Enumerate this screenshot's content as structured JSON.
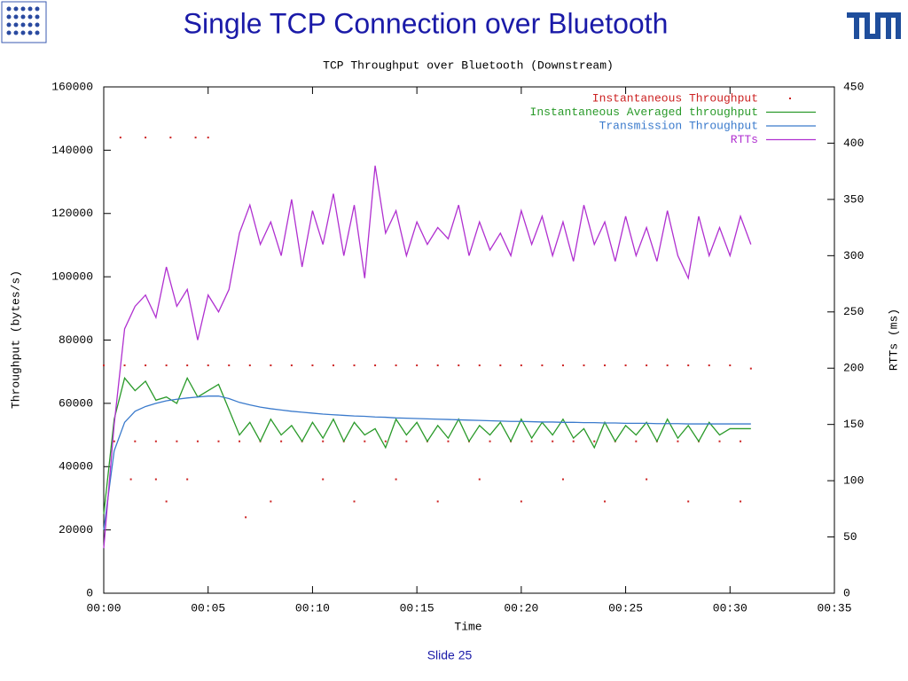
{
  "slide_title": "Single TCP Connection over Bluetooth",
  "footer": "Slide 25",
  "chart_data": {
    "type": "line",
    "title": "TCP Throughput over Bluetooth (Downstream)",
    "x_label": "Time",
    "y_label": "Throughput (bytes/s)",
    "y2_label": "RTTs (ms)",
    "xlim": [
      0,
      35
    ],
    "xticks": [
      {
        "value": 0,
        "label": "00:00"
      },
      {
        "value": 5,
        "label": "00:05"
      },
      {
        "value": 10,
        "label": "00:10"
      },
      {
        "value": 15,
        "label": "00:15"
      },
      {
        "value": 20,
        "label": "00:20"
      },
      {
        "value": 25,
        "label": "00:25"
      },
      {
        "value": 30,
        "label": "00:30"
      },
      {
        "value": 35,
        "label": "00:35"
      }
    ],
    "ylim": [
      0,
      160000
    ],
    "yticks": [
      0,
      20000,
      40000,
      60000,
      80000,
      100000,
      120000,
      140000,
      160000
    ],
    "y2lim": [
      0,
      450
    ],
    "y2ticks": [
      0,
      50,
      100,
      150,
      200,
      250,
      300,
      350,
      400,
      450
    ],
    "legend": "upper right",
    "x": [
      0,
      0.5,
      1,
      1.5,
      2,
      2.5,
      3,
      3.5,
      4,
      4.5,
      5,
      5.5,
      6,
      6.5,
      7,
      7.5,
      8,
      8.5,
      9,
      9.5,
      10,
      10.5,
      11,
      11.5,
      12,
      12.5,
      13,
      13.5,
      14,
      14.5,
      15,
      15.5,
      16,
      16.5,
      17,
      17.5,
      18,
      18.5,
      19,
      19.5,
      20,
      20.5,
      21,
      21.5,
      22,
      22.5,
      23,
      23.5,
      24,
      24.5,
      25,
      25.5,
      26,
      26.5,
      27,
      27.5,
      28,
      28.5,
      29,
      29.5,
      30,
      30.5,
      31
    ],
    "series": [
      {
        "name": "Instantaneous Throughput",
        "color": "#cc2222",
        "style": "dots",
        "x": [
          0,
          1,
          2,
          3,
          4,
          5,
          6,
          7,
          8,
          9,
          10,
          11,
          12,
          13,
          14,
          15,
          16,
          17,
          18,
          19,
          20,
          21,
          22,
          23,
          24,
          25,
          26,
          27,
          28,
          29,
          30,
          31,
          0.5,
          1.5,
          2.5,
          3.5,
          4.5,
          5.5,
          6.5,
          7.5,
          8.5,
          9.5,
          10.5,
          11.5,
          12.5,
          13.5,
          14.5,
          15.5,
          16.5,
          17.5,
          18.5,
          19.5,
          20.5,
          21.5,
          22.5,
          23.5,
          24.5,
          25.5,
          26.5,
          27.5,
          28.5,
          29.5,
          30.5,
          0.8,
          2,
          3.2,
          4.4,
          5,
          1.3,
          2.5,
          4,
          10.5,
          14,
          18,
          22,
          26,
          3,
          8,
          12,
          16,
          20,
          24,
          28,
          30.5,
          6.8
        ],
        "values": [
          72000,
          72000,
          72000,
          72000,
          72000,
          72000,
          72000,
          72000,
          72000,
          72000,
          72000,
          72000,
          72000,
          72000,
          72000,
          72000,
          72000,
          72000,
          72000,
          72000,
          72000,
          72000,
          72000,
          72000,
          72000,
          72000,
          72000,
          72000,
          72000,
          72000,
          72000,
          71000,
          48000,
          48000,
          48000,
          48000,
          48000,
          48000,
          48000,
          48000,
          48000,
          48000,
          48000,
          48000,
          48000,
          48000,
          48000,
          48000,
          48000,
          48000,
          48000,
          48000,
          48000,
          48000,
          48000,
          48000,
          48000,
          48000,
          48000,
          48000,
          48000,
          48000,
          48000,
          144000,
          144000,
          144000,
          144000,
          144000,
          36000,
          36000,
          36000,
          36000,
          36000,
          36000,
          36000,
          36000,
          29000,
          29000,
          29000,
          29000,
          29000,
          29000,
          29000,
          29000,
          24000
        ]
      },
      {
        "name": "Instantaneous Averaged throughput",
        "color": "#2a9a2a",
        "values": [
          25000,
          55000,
          68000,
          64000,
          67000,
          61000,
          62000,
          60000,
          68000,
          62000,
          64000,
          66000,
          58000,
          50000,
          54000,
          48000,
          55000,
          50000,
          53000,
          48000,
          54000,
          49000,
          55000,
          48000,
          54000,
          50000,
          52000,
          46000,
          55000,
          50000,
          54000,
          48000,
          53000,
          49000,
          55000,
          48000,
          53000,
          50000,
          54000,
          48000,
          55000,
          49000,
          54000,
          50000,
          55000,
          49000,
          52000,
          46000,
          54000,
          48000,
          53000,
          50000,
          54000,
          48000,
          55000,
          49000,
          53000,
          48000,
          54000,
          50000,
          52000,
          52000,
          52000
        ]
      },
      {
        "name": "Transmission Throughput",
        "color": "#3a7acc",
        "values": [
          20000,
          45000,
          54000,
          57500,
          59000,
          60000,
          60800,
          61300,
          61700,
          62000,
          62300,
          62300,
          61500,
          60300,
          59500,
          58800,
          58300,
          57900,
          57500,
          57200,
          56900,
          56600,
          56400,
          56200,
          56000,
          55900,
          55700,
          55600,
          55400,
          55300,
          55200,
          55100,
          55000,
          54900,
          54800,
          54700,
          54600,
          54500,
          54400,
          54300,
          54300,
          54200,
          54100,
          54100,
          54000,
          54000,
          53900,
          53900,
          53800,
          53800,
          53700,
          53700,
          53700,
          53600,
          53600,
          53600,
          53500,
          53500,
          53500,
          53500,
          53500,
          53500,
          53500
        ]
      },
      {
        "name": "RTTs",
        "color": "#b030d0",
        "axis": "y2",
        "values": [
          40,
          150,
          235,
          255,
          265,
          245,
          290,
          255,
          270,
          225,
          265,
          250,
          270,
          320,
          345,
          310,
          330,
          300,
          350,
          290,
          340,
          310,
          355,
          300,
          345,
          280,
          380,
          320,
          340,
          300,
          330,
          310,
          325,
          315,
          345,
          300,
          330,
          305,
          320,
          300,
          340,
          310,
          335,
          300,
          330,
          295,
          345,
          310,
          330,
          295,
          335,
          300,
          325,
          295,
          340,
          300,
          280,
          335,
          300,
          325,
          300,
          335,
          310
        ]
      }
    ]
  }
}
